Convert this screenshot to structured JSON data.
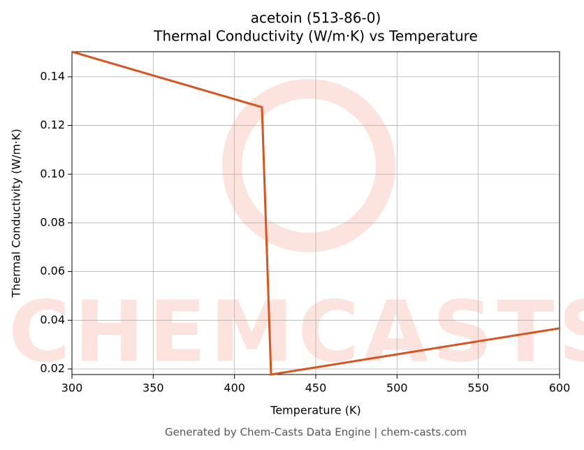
{
  "chart_data": {
    "type": "line",
    "title": "acetoin (513-86-0)",
    "subtitle": "Thermal Conductivity (W/m·K) vs Temperature",
    "x_label": "Temperature (K)",
    "y_label": "Thermal Conductivity (W/m·K)",
    "footer": "Generated by Chem-Casts Data Engine | chem-casts.com",
    "watermark": "CHEMCASTS",
    "grid": true,
    "x": [
      300,
      416.9,
      422.5,
      600
    ],
    "series": [
      {
        "name": "Thermal Conductivity",
        "color": "#d9531e",
        "values": [
          0.1503,
          0.1275,
          0.0177,
          0.0367
        ]
      }
    ],
    "xlim": [
      300,
      600
    ],
    "xticks": [
      300,
      350,
      400,
      450,
      500,
      550,
      600
    ],
    "ylim": [
      0.0177,
      0.1503
    ],
    "yticks": [
      0.02,
      0.04,
      0.06,
      0.08,
      {
        "value": 0.1,
        "label": "0.10"
      },
      0.12,
      0.14
    ]
  }
}
